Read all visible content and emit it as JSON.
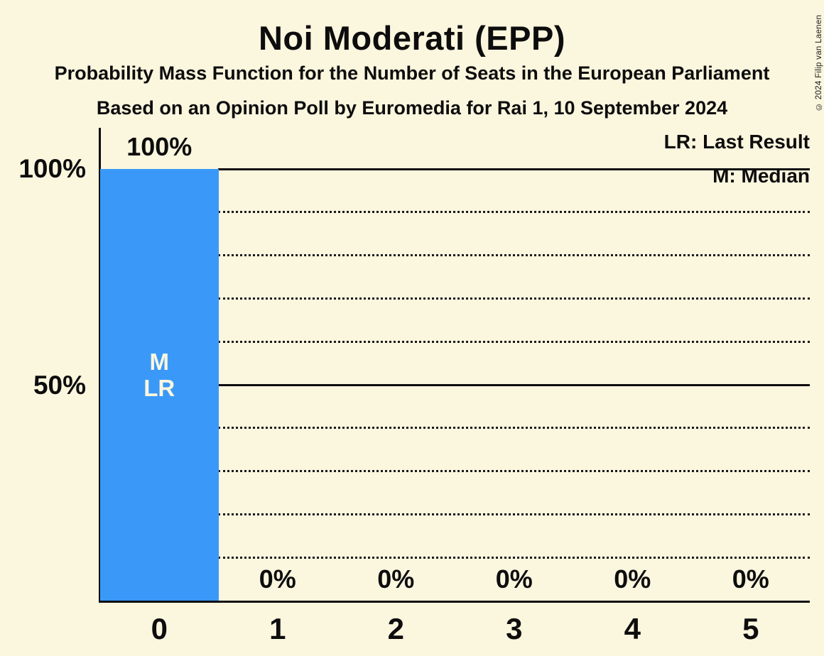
{
  "title": "Noi Moderati (EPP)",
  "subtitle1": "Probability Mass Function for the Number of Seats in the European Parliament",
  "subtitle2": "Based on an Opinion Poll by Euromedia for Rai 1, 10 September 2024",
  "copyright": "© 2024 Filip van Laenen",
  "legend": {
    "lr": "LR: Last Result",
    "m": "M: Median"
  },
  "y_axis": {
    "tick_labels": [
      "100%",
      "50%"
    ]
  },
  "colors": {
    "background": "#FBF6DE",
    "bar": "#3A99F8",
    "text": "#0d0d0d",
    "bar_annotation_text": "#FBF6DE"
  },
  "chart_data": {
    "type": "bar",
    "title": "Noi Moderati (EPP)",
    "categories": [
      "0",
      "1",
      "2",
      "3",
      "4",
      "5"
    ],
    "values": [
      100,
      0,
      0,
      0,
      0,
      0
    ],
    "value_labels": [
      "100%",
      "0%",
      "0%",
      "0%",
      "0%",
      "0%"
    ],
    "ylim": [
      0,
      100
    ],
    "y_tick_marks": [
      {
        "pct": 100,
        "label": "100%"
      },
      {
        "pct": 50,
        "label": "50%"
      }
    ],
    "gridlines": [
      {
        "pct": 100,
        "style": "solid"
      },
      {
        "pct": 90,
        "style": "dotted"
      },
      {
        "pct": 80,
        "style": "dotted"
      },
      {
        "pct": 70,
        "style": "dotted"
      },
      {
        "pct": 60,
        "style": "dotted"
      },
      {
        "pct": 50,
        "style": "solid"
      },
      {
        "pct": 40,
        "style": "dotted"
      },
      {
        "pct": 30,
        "style": "dotted"
      },
      {
        "pct": 20,
        "style": "dotted"
      },
      {
        "pct": 10,
        "style": "dotted"
      }
    ],
    "annotations": [
      {
        "category": "0",
        "lines": [
          "M",
          "LR"
        ]
      }
    ],
    "legend_entries": [
      "LR: Last Result",
      "M: Median"
    ],
    "legend_position": "top-right"
  }
}
